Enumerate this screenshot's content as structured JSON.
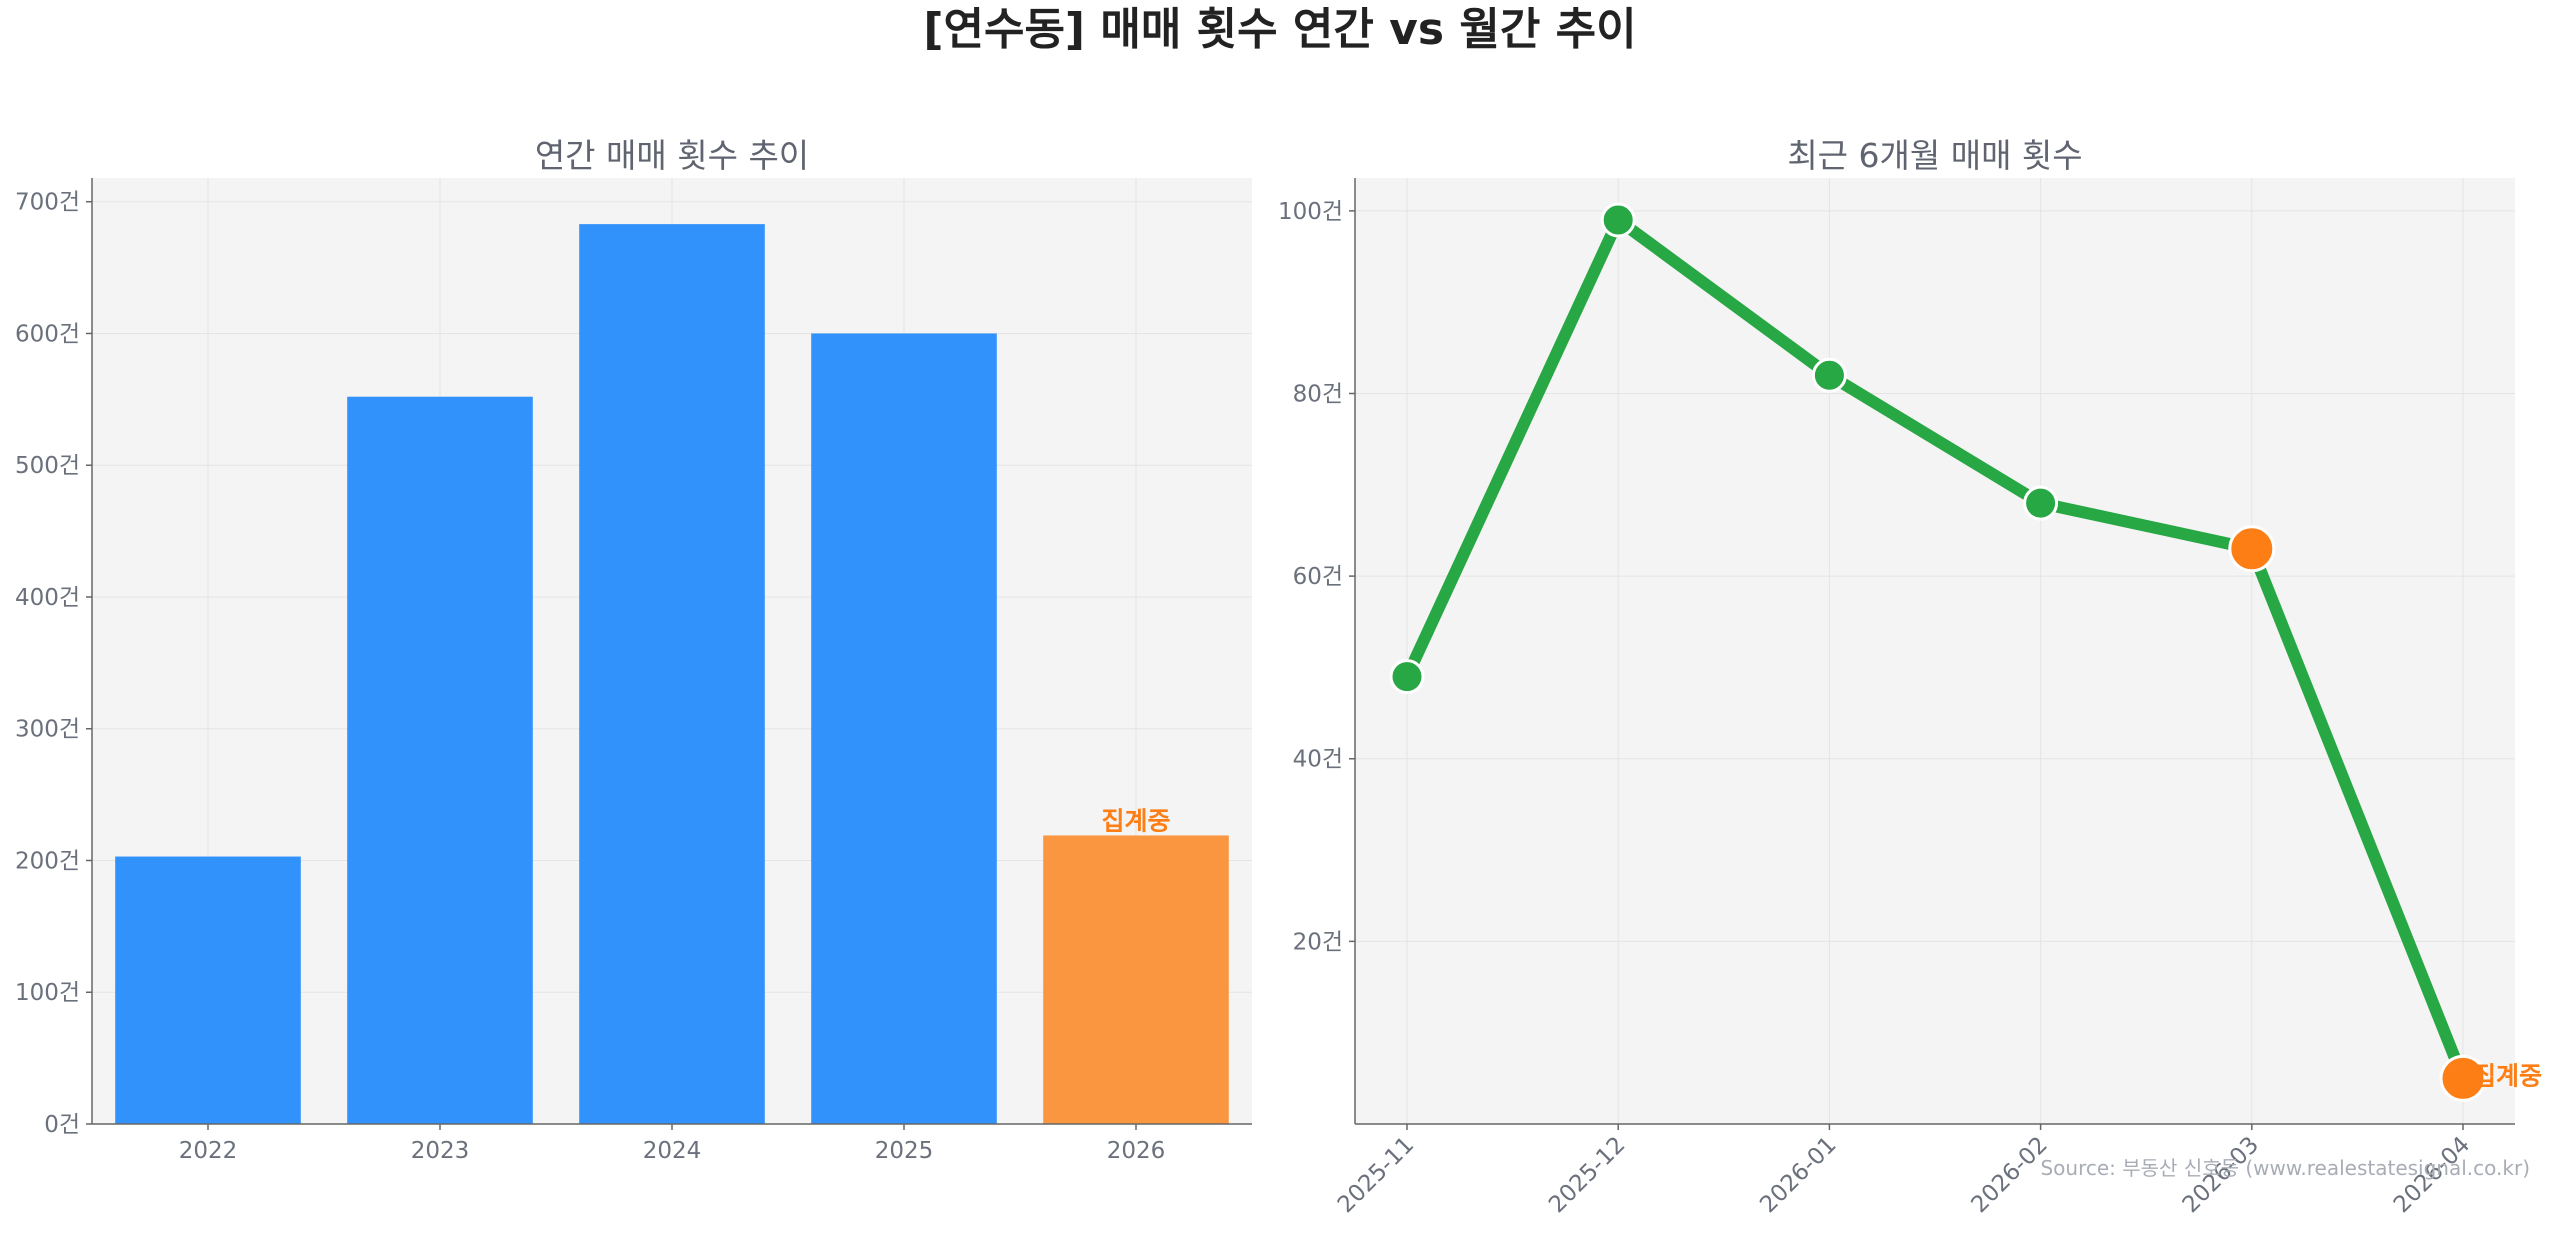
{
  "title": "[연수동] 매매 횟수 연간 vs 월간 추이",
  "source": "Source: 부동산 신호등 (www.realestatesignal.co.kr)",
  "colors": {
    "bar": "#3192fc",
    "bar_highlight": "#fa963f",
    "line": "#28a745",
    "point_highlight": "#fd7e14",
    "annotation": "#fd7e14",
    "plot_bg": "#f4f4f4",
    "grid": "#e4e4e4",
    "axis": "#666666"
  },
  "chart_data": [
    {
      "type": "bar",
      "title": "연간 매매 횟수 추이",
      "categories": [
        "2022",
        "2023",
        "2024",
        "2025",
        "2026"
      ],
      "values": [
        203,
        552,
        683,
        600,
        219
      ],
      "highlight_index": 4,
      "annotation": {
        "index": 4,
        "text": "집계중"
      },
      "ylim": [
        0,
        718
      ],
      "yticks": [
        0,
        100,
        200,
        300,
        400,
        500,
        600,
        700
      ],
      "yticklabels": [
        "0건",
        "100건",
        "200건",
        "300건",
        "400건",
        "500건",
        "600건",
        "700건"
      ],
      "grid": true,
      "xlabel": "",
      "ylabel": ""
    },
    {
      "type": "line",
      "title": "최근 6개월 매매 횟수",
      "x": [
        "2025-11",
        "2025-12",
        "2026-01",
        "2026-02",
        "2026-03",
        "2026-04"
      ],
      "values": [
        49,
        99,
        82,
        68,
        63,
        5
      ],
      "highlight_indices": [
        4,
        5
      ],
      "annotation": {
        "index": 5,
        "text": "집계중"
      },
      "ylim": [
        0,
        103.6
      ],
      "yticks": [
        20,
        40,
        60,
        80,
        100
      ],
      "yticklabels": [
        "20건",
        "40건",
        "60건",
        "80건",
        "100건"
      ],
      "grid": true,
      "xlabel": "",
      "ylabel": ""
    }
  ]
}
